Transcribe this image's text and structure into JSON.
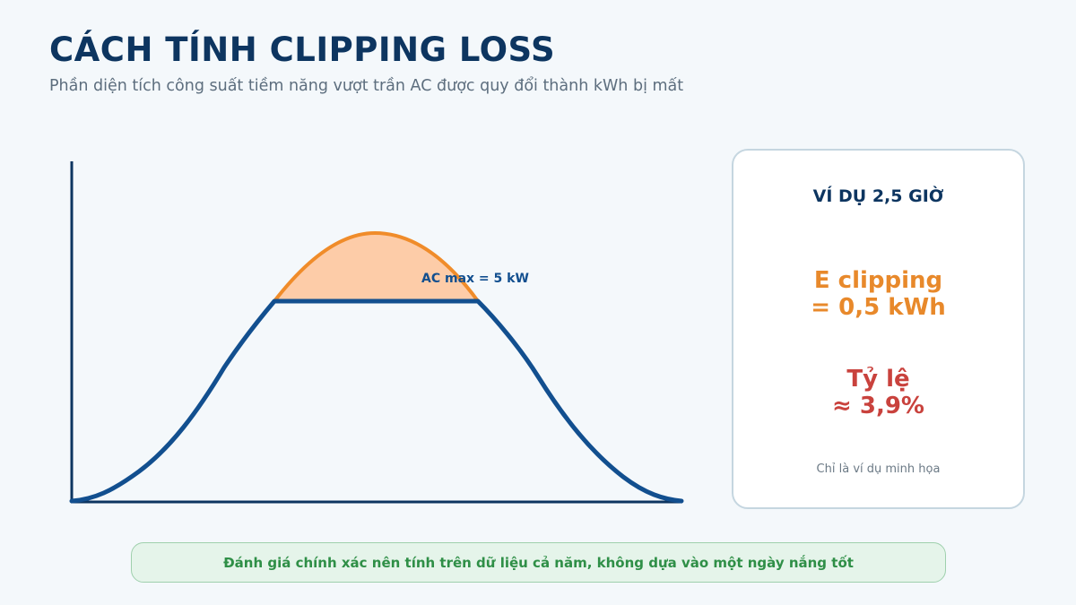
{
  "header": {
    "title": "CÁCH TÍNH CLIPPING LOSS",
    "subtitle": "Phần diện tích công suất tiềm năng vượt trần AC được quy đổi thành kWh bị mất"
  },
  "diagram": {
    "ac_label": "AC max = 5 kW",
    "colors": {
      "axis": "#0d3560",
      "power_curve": "#124f8f",
      "clipped_area_fill": "#fdcca8",
      "clipped_area_stroke": "#f08c2a"
    }
  },
  "example_card": {
    "title": "VÍ DỤ 2,5 GIỜ",
    "energy_line1": "E clipping",
    "energy_line2": "= 0,5 kWh",
    "ratio_line1": "Tỷ lệ",
    "ratio_line2": "≈ 3,9%",
    "note": "Chỉ là ví dụ minh họa"
  },
  "banner": {
    "text": "Đánh giá chính xác nên tính trên dữ liệu cả năm, không dựa vào một ngày nắng tốt"
  }
}
